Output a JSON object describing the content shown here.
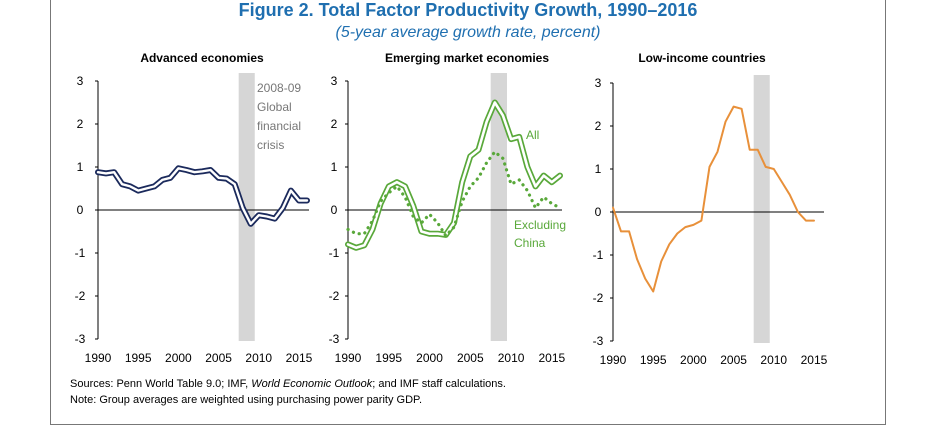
{
  "figure": {
    "title": "Figure 2. Total Factor Productivity Growth, 1990–2016",
    "subtitle": "(5-year average growth rate, percent)"
  },
  "notes": {
    "sources_prefix": "Sources: Penn World Table 9.0; IMF, ",
    "sources_italic": "World Economic Outlook",
    "sources_suffix": "; and IMF staff calculations.",
    "note": "Note: Group averages are weighted using purchasing power parity GDP."
  },
  "colors": {
    "advanced": "#1b2a5c",
    "emerging": "#59a83a",
    "emerging_ex_china": "#59a83a",
    "lowincome": "#e8903a",
    "shade": "#d6d6d6",
    "annotation": "#777777"
  },
  "chart_data": [
    {
      "type": "line",
      "title": "Advanced economies",
      "ylim": [
        -3,
        3
      ],
      "yticks": [
        3,
        2,
        1,
        0,
        -1,
        -2,
        -3
      ],
      "xlim": [
        1990,
        2016
      ],
      "xticks": [
        1990,
        1995,
        2000,
        2005,
        2010,
        2015
      ],
      "shaded_band": [
        2008,
        2009
      ],
      "annotation": [
        "2008-09",
        "Global",
        "financial",
        "crisis"
      ],
      "series": [
        {
          "name": "Advanced economies",
          "style": "solid",
          "x": [
            1990,
            1991,
            1992,
            1993,
            1994,
            1995,
            1996,
            1997,
            1998,
            1999,
            2000,
            2001,
            2002,
            2003,
            2004,
            2005,
            2006,
            2007,
            2008,
            2009,
            2010,
            2011,
            2012,
            2013,
            2014,
            2015,
            2016
          ],
          "values": [
            0.88,
            0.85,
            0.88,
            0.6,
            0.55,
            0.45,
            0.5,
            0.55,
            0.7,
            0.75,
            0.97,
            0.93,
            0.88,
            0.9,
            0.93,
            0.75,
            0.73,
            0.6,
            0.05,
            -0.32,
            -0.12,
            -0.15,
            -0.2,
            0.05,
            0.45,
            0.22,
            0.22
          ]
        }
      ]
    },
    {
      "type": "line",
      "title": "Emerging market economies",
      "ylim": [
        -3,
        3
      ],
      "yticks": [
        3,
        2,
        1,
        0,
        -1,
        -2,
        -3
      ],
      "xlim": [
        1990,
        2016
      ],
      "xticks": [
        1990,
        1995,
        2000,
        2005,
        2010,
        2015
      ],
      "shaded_band": [
        2008,
        2009
      ],
      "annotations": [
        {
          "text": "All"
        },
        {
          "text": "Excluding"
        },
        {
          "text": "China"
        }
      ],
      "series": [
        {
          "name": "All",
          "style": "double",
          "x": [
            1990,
            1991,
            1992,
            1993,
            1994,
            1995,
            1996,
            1997,
            1998,
            1999,
            2000,
            2001,
            2002,
            2003,
            2004,
            2005,
            2006,
            2007,
            2008,
            2009,
            2010,
            2011,
            2012,
            2013,
            2014,
            2015,
            2016
          ],
          "values": [
            -0.8,
            -0.88,
            -0.82,
            -0.45,
            0.15,
            0.55,
            0.65,
            0.55,
            0.1,
            -0.5,
            -0.55,
            -0.55,
            -0.58,
            -0.3,
            0.65,
            1.25,
            1.4,
            2.05,
            2.5,
            2.2,
            1.65,
            1.7,
            1.0,
            0.55,
            0.8,
            0.65,
            0.8
          ]
        },
        {
          "name": "Excluding China",
          "style": "dotted",
          "x": [
            1990,
            1991,
            1992,
            1993,
            1994,
            1995,
            1996,
            1997,
            1998,
            1999,
            2000,
            2001,
            2002,
            2003,
            2004,
            2005,
            2006,
            2007,
            2008,
            2009,
            2010,
            2011,
            2012,
            2013,
            2014,
            2015,
            2016
          ],
          "values": [
            -0.45,
            -0.55,
            -0.55,
            -0.25,
            0.2,
            0.4,
            0.55,
            0.3,
            -0.15,
            -0.3,
            -0.1,
            -0.3,
            -0.6,
            -0.4,
            0.2,
            0.55,
            0.75,
            1.1,
            1.35,
            1.2,
            0.6,
            0.7,
            0.45,
            0.05,
            0.3,
            0.15,
            0.05
          ]
        }
      ]
    },
    {
      "type": "line",
      "title": "Low-income countries",
      "ylim": [
        -3,
        3
      ],
      "yticks": [
        3,
        2,
        1,
        0,
        -1,
        -2,
        -3
      ],
      "xlim": [
        1990,
        2016
      ],
      "xticks": [
        1990,
        1995,
        2000,
        2005,
        2010,
        2015
      ],
      "shaded_band": [
        2008,
        2009
      ],
      "series": [
        {
          "name": "Low-income countries",
          "style": "solid",
          "x": [
            1990,
            1991,
            1992,
            1993,
            1994,
            1995,
            1996,
            1997,
            1998,
            1999,
            2000,
            2001,
            2002,
            2003,
            2004,
            2005,
            2006,
            2007,
            2008,
            2009,
            2010,
            2011,
            2012,
            2013,
            2014,
            2015
          ],
          "values": [
            0.1,
            -0.45,
            -0.45,
            -1.1,
            -1.55,
            -1.85,
            -1.15,
            -0.75,
            -0.5,
            -0.35,
            -0.3,
            -0.2,
            1.05,
            1.4,
            2.1,
            2.45,
            2.4,
            1.45,
            1.45,
            1.05,
            1.0,
            0.7,
            0.4,
            0.0,
            -0.2,
            -0.2
          ]
        }
      ]
    }
  ]
}
